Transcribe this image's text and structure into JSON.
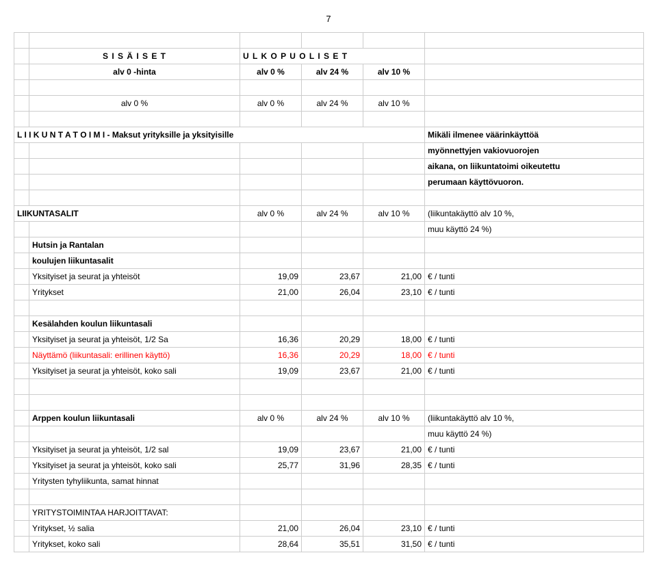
{
  "page_number": "7",
  "header": {
    "sisaiset": "S I S Ä I S E T",
    "ulkopuoliset": "U L K O P U O L I S E T",
    "alv0hinta": "alv 0 -hinta",
    "alv0": "alv 0 %",
    "alv24": "alv 24 %",
    "alv10": "alv 10 %"
  },
  "section1": {
    "title": "L I I K U N T A T O I M I  - Maksut yrityksille ja yksityisille",
    "note1": "Mikäli ilmenee väärinkäyttöä",
    "note2": "myönnettyjen vakiovuorojen",
    "note3": "aikana, on liikuntatoimi oikeutettu",
    "note4": "perumaan käyttövuoron."
  },
  "section2": {
    "title": "LIIKUNTASALIT",
    "alv0": "alv 0 %",
    "alv24": "alv 24 %",
    "alv10": "alv 10 %",
    "note1": "(liikuntakäyttö alv  10 %,",
    "note2": "muu käyttö 24 %)",
    "row1a": "Hutsin  ja Rantalan",
    "row1b": "koulujen liikuntasalit",
    "row2_label": "Yksityiset ja seurat ja yhteisöt",
    "row2_c": "19,09",
    "row2_d": "23,67",
    "row2_e": "21,00",
    "row2_unit": "€ / tunti",
    "row3_label": "Yritykset",
    "row3_c": "21,00",
    "row3_d": "26,04",
    "row3_e": "23,10",
    "row3_unit": "€ / tunti"
  },
  "section3": {
    "title": "Kesälahden koulun liikuntasali",
    "row1_label": "Yksityiset ja seurat ja yhteisöt, 1/2 Sa",
    "row1_c": "16,36",
    "row1_d": "20,29",
    "row1_e": "18,00",
    "row1_unit": "€ / tunti",
    "row2_label": "Näyttämö (liikuntasali: erillinen käyttö)",
    "row2_c": "16,36",
    "row2_d": "20,29",
    "row2_e": "18,00",
    "row2_unit": "€ / tunti",
    "row3_label": "Yksityiset ja seurat ja yhteisöt, koko sali",
    "row3_c": "19,09",
    "row3_d": "23,67",
    "row3_e": "21,00",
    "row3_unit": "€ / tunti"
  },
  "section4": {
    "title": "Arppen koulun liikuntasali",
    "alv0": "alv 0 %",
    "alv24": "alv 24 %",
    "alv10": "alv 10 %",
    "note1": "(liikuntakäyttö alv 10 %,",
    "note2": "muu käyttö 24 %)",
    "row1_label": "Yksityiset ja seurat ja yhteisöt, 1/2 sal",
    "row1_c": "19,09",
    "row1_d": "23,67",
    "row1_e": "21,00",
    "row1_unit": "€ / tunti",
    "row2_label": "Yksityiset ja seurat ja yhteisöt, koko sali",
    "row2_c": "25,77",
    "row2_d": "31,96",
    "row2_e": "28,35",
    "row2_unit": "€ / tunti",
    "row3_label": "Yritysten tyhyliikunta, samat hinnat"
  },
  "section5": {
    "title": "YRITYSTOIMINTAA HARJOITTAVAT:",
    "row1_label": "Yritykset, ½ salia",
    "row1_c": "21,00",
    "row1_d": "26,04",
    "row1_e": "23,10",
    "row1_unit": "€ / tunti",
    "row2_label": "Yritykset, koko sali",
    "row2_c": "28,64",
    "row2_d": "35,51",
    "row2_e": "31,50",
    "row2_unit": "€ / tunti"
  }
}
